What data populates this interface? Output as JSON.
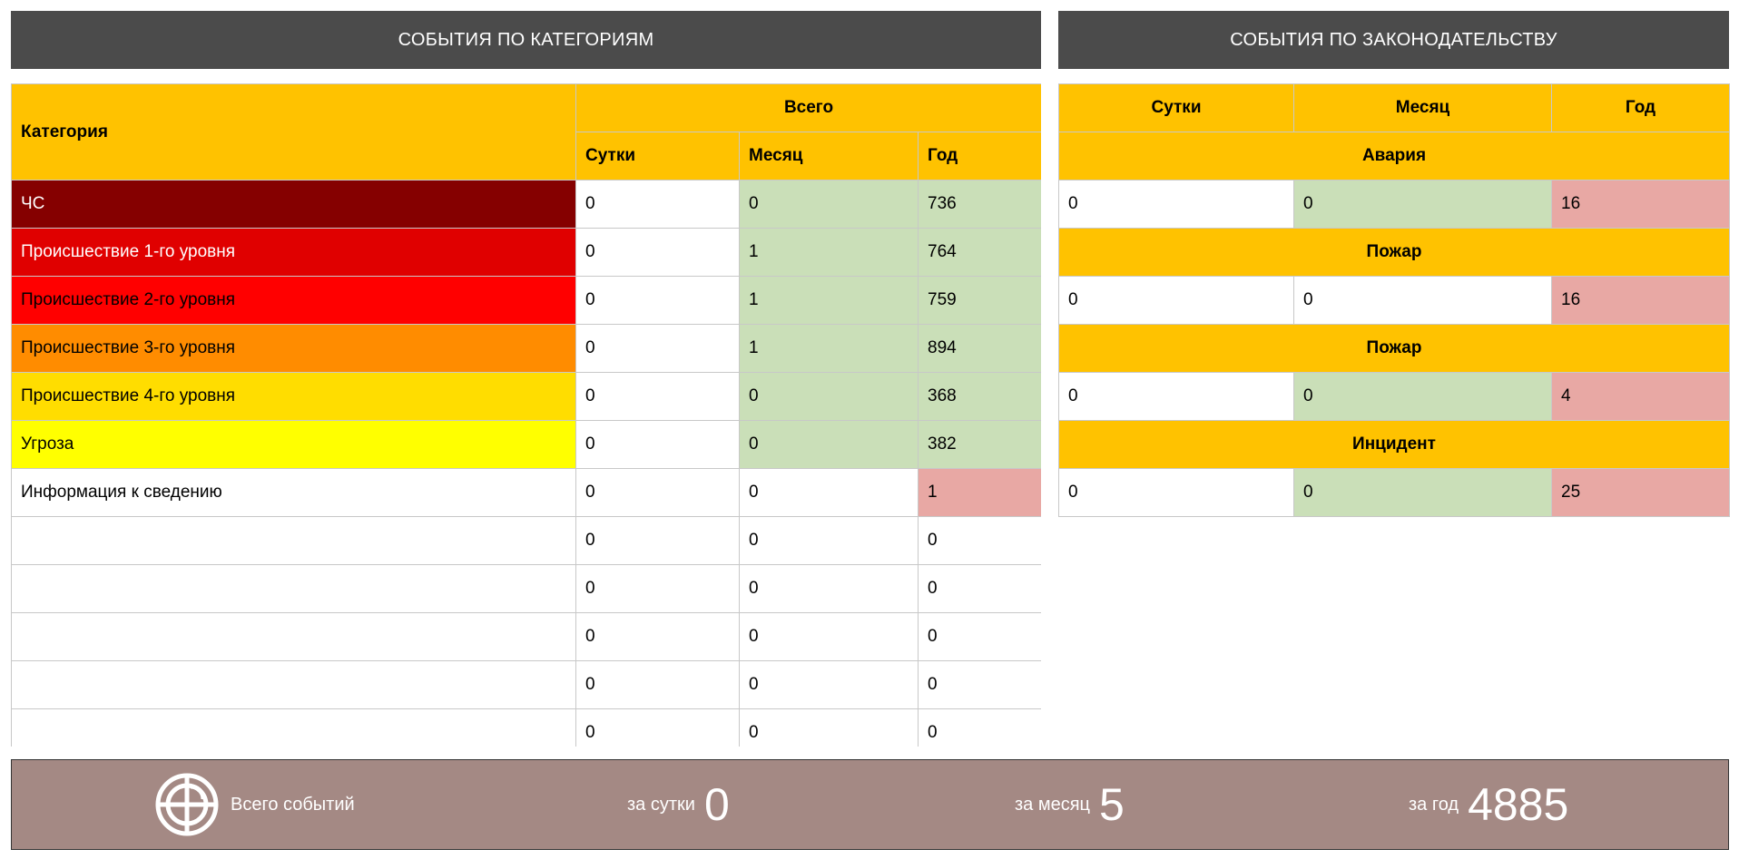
{
  "left_header": "СОБЫТИЯ ПО КАТЕГОРИЯМ",
  "right_header": "СОБЫТИЯ ПО ЗАКОНОДАТЕЛЬСТВУ",
  "categories_table": {
    "col_category": "Категория",
    "group_total": "Всего",
    "col_day": "Сутки",
    "col_month": "Месяц",
    "col_year": "Год",
    "rows": [
      {
        "label": "ЧС",
        "day": "0",
        "month": "0",
        "year": "736",
        "color": "#850000"
      },
      {
        "label": "Происшествие 1-го уровня",
        "day": "0",
        "month": "1",
        "year": "764",
        "color": "#e00000"
      },
      {
        "label": "Происшествие 2-го уровня",
        "day": "0",
        "month": "1",
        "year": "759",
        "color": "#ff0000"
      },
      {
        "label": "Происшествие 3-го уровня",
        "day": "0",
        "month": "1",
        "year": "894",
        "color": "#ff8c00"
      },
      {
        "label": "Происшествие 4-го уровня",
        "day": "0",
        "month": "0",
        "year": "368",
        "color": "#ffdd00"
      },
      {
        "label": "Угроза",
        "day": "0",
        "month": "0",
        "year": "382",
        "color": "#ffff00"
      },
      {
        "label": "Информация к сведению",
        "day": "0",
        "month": "0",
        "year": "1",
        "color": "#ffffff"
      },
      {
        "label": "",
        "day": "0",
        "month": "0",
        "year": "0"
      },
      {
        "label": "",
        "day": "0",
        "month": "0",
        "year": "0"
      },
      {
        "label": "",
        "day": "0",
        "month": "0",
        "year": "0"
      },
      {
        "label": "",
        "day": "0",
        "month": "0",
        "year": "0"
      },
      {
        "label": "",
        "day": "0",
        "month": "0",
        "year": "0"
      }
    ]
  },
  "legislation_table": {
    "col_day": "Сутки",
    "col_month": "Месяц",
    "col_year": "Год",
    "sections": [
      {
        "title": "Авария",
        "day": "0",
        "month": "0",
        "year": "16"
      },
      {
        "title": "Пожар",
        "day": "0",
        "month": "0",
        "year": "16"
      },
      {
        "title": "Пожар",
        "day": "0",
        "month": "0",
        "year": "4"
      },
      {
        "title": "Инцидент",
        "day": "0",
        "month": "0",
        "year": "25"
      }
    ]
  },
  "footer": {
    "total_label": "Всего событий",
    "day_label": "за сутки",
    "day_value": "0",
    "month_label": "за месяц",
    "month_value": "5",
    "year_label": "за год",
    "year_value": "4885",
    "logo_icon": "crosshair-logo-icon"
  },
  "colors": {
    "header_bg": "#4b4b4b",
    "table_header": "#ffc200",
    "cell_green": "#cadfb8",
    "cell_pink": "#e8a8a4",
    "footer_bg": "#a48984"
  }
}
